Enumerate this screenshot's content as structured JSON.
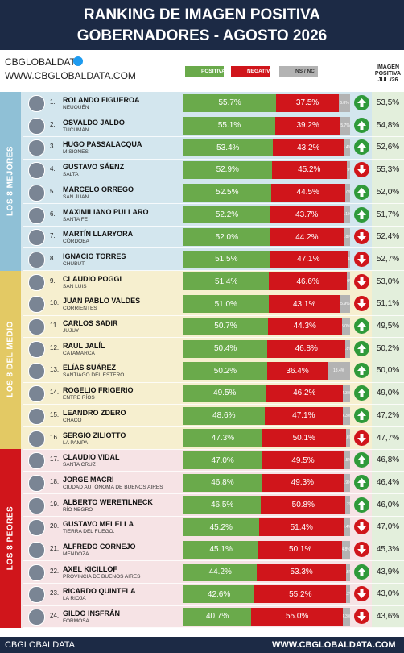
{
  "header": {
    "title_line1": "RANKING DE IMAGEN POSITIVA",
    "title_line2": "GOBERNADORES - AGOSTO 2026",
    "brand": "CBGLOBALDATA",
    "url": "WWW.CBGLOBALDATA.COM"
  },
  "footer": {
    "brand": "CBGLOBALDATA",
    "url": "WWW.CBGLOBALDATA.COM"
  },
  "chart_data": {
    "type": "bar",
    "orientation": "horizontal",
    "stacked": true,
    "xlim": [
      0,
      100
    ],
    "groups": [
      {
        "label": "LOS 8 MEJORES",
        "color": "#d3e6ee",
        "strip": "#8fc0d6"
      },
      {
        "label": "LOS 8 DEL MEDIO",
        "color": "#f6efcf",
        "strip": "#e3c964"
      },
      {
        "label": "LOS 8 PEORES",
        "color": "#f6e3e5",
        "strip": "#d0151b"
      }
    ],
    "ranks": [
      "1.",
      "2.",
      "3.",
      "4.",
      "5.",
      "6.",
      "7.",
      "8.",
      "9.",
      "10.",
      "11.",
      "12.",
      "13.",
      "14.",
      "15.",
      "16.",
      "17.",
      "18.",
      "19.",
      "20.",
      "21.",
      "22.",
      "23.",
      "24."
    ],
    "categories": [
      "ROLANDO FIGUEROA",
      "OSVALDO JALDO",
      "HUGO PASSALACQUA",
      "GUSTAVO SÁENZ",
      "MARCELO ORREGO",
      "MAXIMILIANO PULLARO",
      "MARTÍN LLARYORA",
      "IGNACIO TORRES",
      "CLAUDIO POGGI",
      "JUAN PABLO VALDES",
      "CARLOS SADIR",
      "RAUL JALÍL",
      "ELÍAS SUÁREZ",
      "ROGELIO FRIGERIO",
      "LEANDRO ZDERO",
      "SERGIO ZILIOTTO",
      "CLAUDIO VIDAL",
      "JORGE MACRI",
      "ALBERTO WERETILNECK",
      "GUSTAVO MELELLA",
      "ALFREDO CORNEJO",
      "AXEL KICILLOF",
      "RICARDO QUINTELA",
      "GILDO INSFRÁN"
    ],
    "provinces": [
      "NEUQUÉN",
      "TUCUMÁN",
      "MISIONES",
      "SALTA",
      "SAN JUAN",
      "SANTA FE",
      "CÓRDOBA",
      "CHUBUT",
      "SAN LUIS",
      "CORRIENTES",
      "JUJUY",
      "CATAMARCA",
      "SANTIAGO DEL ESTERO",
      "ENTRE RÍOS",
      "CHACO",
      "LA PAMPA",
      "SANTA CRUZ",
      "CIUDAD AUTÓNOMA DE BUENOS AIRES",
      "RÍO NEGRO",
      "TIERRA DEL FUEGO.",
      "MENDOZA",
      "PROVINCIA DE BUENOS AIRES",
      "LA RIOJA",
      "FORMOSA"
    ],
    "series": [
      {
        "name": "POSITIVA",
        "color": "#6aaa4b",
        "values": [
          55.7,
          55.1,
          53.4,
          52.9,
          52.5,
          52.2,
          52.0,
          51.5,
          51.4,
          51.0,
          50.7,
          50.4,
          50.2,
          49.5,
          48.6,
          47.3,
          47.0,
          46.8,
          46.5,
          45.2,
          45.1,
          44.2,
          42.6,
          40.7
        ],
        "value_labels": [
          "55.7%",
          "55.1%",
          "53.4%",
          "52.9%",
          "52.5%",
          "52.2%",
          "52.0%",
          "51.5%",
          "51.4%",
          "51.0%",
          "50.7%",
          "50.4%",
          "50.2%",
          "49.5%",
          "48.6%",
          "47.3%",
          "47.0%",
          "46.8%",
          "46.5%",
          "45.2%",
          "45.1%",
          "44.2%",
          "42.6%",
          "40.7%"
        ]
      },
      {
        "name": "NEGATIVA",
        "color": "#d0151b",
        "values": [
          37.5,
          39.2,
          43.2,
          45.2,
          44.5,
          43.7,
          44.2,
          47.1,
          46.6,
          43.1,
          44.3,
          46.8,
          36.4,
          46.2,
          47.1,
          50.1,
          49.5,
          49.3,
          50.8,
          51.4,
          50.1,
          53.3,
          55.2,
          55.0
        ],
        "value_labels": [
          "37.5%",
          "39.2%",
          "43.2%",
          "45.2%",
          "44.5%",
          "43.7%",
          "44.2%",
          "47.1%",
          "46.6%",
          "43.1%",
          "44.3%",
          "46.8%",
          "36.4%",
          "46.2%",
          "47.1%",
          "50.1%",
          "49.5%",
          "49.3%",
          "50.8%",
          "51.4%",
          "50.1%",
          "53.3%",
          "55.2%",
          "55.0%"
        ]
      },
      {
        "name": "NS / NC",
        "color": "#b3b3b3",
        "values": [
          6.8,
          5.7,
          3.4,
          1.9,
          3.0,
          4.1,
          3.8,
          1.4,
          2.0,
          5.9,
          5.0,
          2.8,
          13.4,
          4.3,
          4.3,
          2.6,
          3.5,
          3.9,
          2.7,
          3.4,
          4.8,
          2.5,
          2.2,
          4.3
        ],
        "value_labels": [
          "6.8%",
          "5.7%",
          "3.4%",
          "1.9%",
          "3.0%",
          "4.1%",
          "3.8%",
          "1.4%",
          "2.0%",
          "5.9%",
          "5.0%",
          "2.8%",
          "13.4%",
          "4.3%",
          "4.3%",
          "2.6%",
          "3.5%",
          "3.9%",
          "2.7%",
          "3.4%",
          "4.8%",
          "2.5%",
          "2.2%",
          "4.3%"
        ]
      }
    ],
    "previous": {
      "name": "IMAGEN POSITIVA JUL./26",
      "values": [
        53.5,
        54.8,
        52.6,
        55.3,
        52.0,
        51.7,
        52.4,
        52.7,
        53.0,
        51.1,
        49.5,
        50.2,
        50.0,
        49.0,
        47.2,
        47.7,
        46.8,
        46.4,
        46.0,
        47.0,
        45.3,
        43.9,
        43.0,
        43.6
      ],
      "value_labels": [
        "53,5%",
        "54,8%",
        "52,6%",
        "55,3%",
        "52,0%",
        "51,7%",
        "52,4%",
        "52,7%",
        "53,0%",
        "51,1%",
        "49,5%",
        "50,2%",
        "50,0%",
        "49,0%",
        "47,2%",
        "47,7%",
        "46,8%",
        "46,4%",
        "46,0%",
        "47,0%",
        "45,3%",
        "43,9%",
        "43,0%",
        "43,6%"
      ]
    }
  }
}
